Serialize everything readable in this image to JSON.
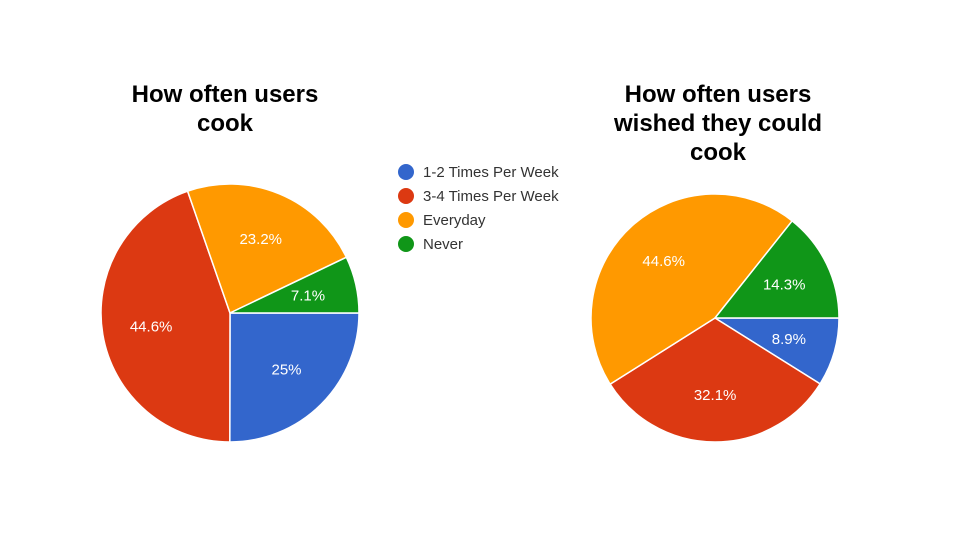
{
  "colors": {
    "1-2 Times Per Week": "#3366cc",
    "3-4 Times Per Week": "#dc3912",
    "Everyday": "#ff9900",
    "Never": "#109618"
  },
  "legend": [
    "1-2 Times Per Week",
    "3-4 Times Per Week",
    "Everyday",
    "Never"
  ],
  "chart_data": [
    {
      "type": "pie",
      "title": "How often users cook",
      "legend_position": "right",
      "slices": [
        {
          "label": "1-2 Times Per Week",
          "value": 25,
          "display": "25%"
        },
        {
          "label": "3-4 Times Per Week",
          "value": 44.6,
          "display": "44.6%"
        },
        {
          "label": "Everyday",
          "value": 23.2,
          "display": "23.2%"
        },
        {
          "label": "Never",
          "value": 7.1,
          "display": "7.1%"
        }
      ]
    },
    {
      "type": "pie",
      "title": "How often users wished they could cook",
      "slices": [
        {
          "label": "1-2 Times Per Week",
          "value": 8.9,
          "display": "8.9%"
        },
        {
          "label": "3-4 Times Per Week",
          "value": 32.1,
          "display": "32.1%"
        },
        {
          "label": "Everyday",
          "value": 44.6,
          "display": "44.6%"
        },
        {
          "label": "Never",
          "value": 14.3,
          "display": "14.3%"
        }
      ]
    }
  ]
}
